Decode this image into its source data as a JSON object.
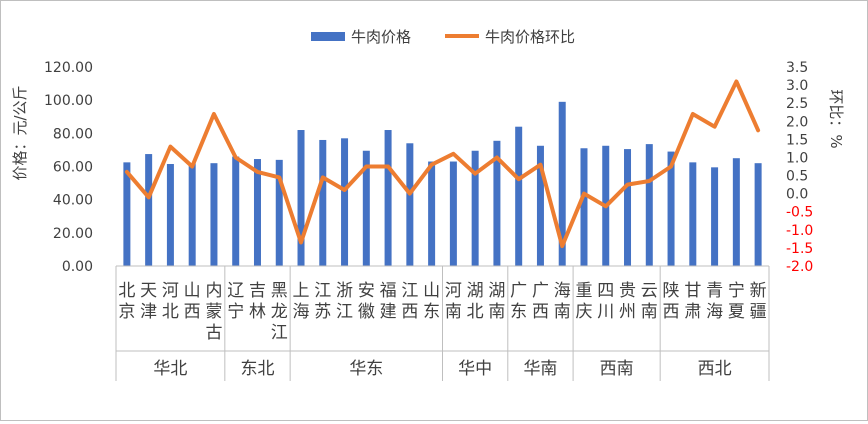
{
  "chart_data": {
    "type": "bar+line",
    "legend": {
      "placement": "top-center",
      "bar_name": "牛肉价格",
      "line_name": "牛肉价格环比"
    },
    "y_left": {
      "label": "价格：元/公斤",
      "ticks": [
        "0.00",
        "20.00",
        "40.00",
        "60.00",
        "80.00",
        "100.00",
        "120.00"
      ],
      "range": [
        0,
        120
      ]
    },
    "y_right": {
      "label": "环比：%",
      "ticks": [
        "-2.0",
        "-1.5",
        "-1.0",
        "-0.5",
        "0.0",
        "0.5",
        "1.0",
        "1.5",
        "2.0",
        "2.5",
        "3.0",
        "3.5"
      ],
      "range": [
        -2.0,
        3.5
      ]
    },
    "categories": [
      "北京",
      "天津",
      "河北",
      "山西",
      "内蒙古",
      "辽宁",
      "吉林",
      "黑龙江",
      "上海",
      "江苏",
      "浙江",
      "安徽",
      "福建",
      "江西",
      "山东",
      "河南",
      "湖北",
      "湖南",
      "广东",
      "广西",
      "海南",
      "重庆",
      "四川",
      "贵州",
      "云南",
      "陕西",
      "甘肃",
      "青海",
      "宁夏",
      "新疆"
    ],
    "regions": [
      {
        "name": "华北",
        "count": 5
      },
      {
        "name": "东北",
        "count": 3
      },
      {
        "name": "华东",
        "count": 7
      },
      {
        "name": "华中",
        "count": 3
      },
      {
        "name": "华南",
        "count": 3
      },
      {
        "name": "西南",
        "count": 4
      },
      {
        "name": "西北",
        "count": 5
      }
    ],
    "series": [
      {
        "name": "牛肉价格",
        "type": "bar",
        "axis": "left",
        "color": "#4472c4",
        "values": [
          62.5,
          67.5,
          61.5,
          62,
          62,
          66,
          64.5,
          64,
          82,
          76,
          77,
          69.5,
          82,
          74,
          63,
          63,
          69.5,
          75.5,
          84,
          72.5,
          99,
          71,
          72.5,
          70.5,
          73.5,
          69,
          62.5,
          59.5,
          65,
          62
        ]
      },
      {
        "name": "牛肉价格环比",
        "type": "line",
        "axis": "right",
        "color": "#ed7d31",
        "values": [
          0.6,
          -0.1,
          1.3,
          0.75,
          2.2,
          1.0,
          0.6,
          0.45,
          -1.35,
          0.45,
          0.1,
          0.75,
          0.75,
          0.0,
          0.8,
          1.1,
          0.55,
          1.0,
          0.4,
          0.8,
          -1.45,
          0.0,
          -0.35,
          0.25,
          0.35,
          0.75,
          2.2,
          1.85,
          3.1,
          1.75
        ]
      }
    ],
    "grid": false
  }
}
